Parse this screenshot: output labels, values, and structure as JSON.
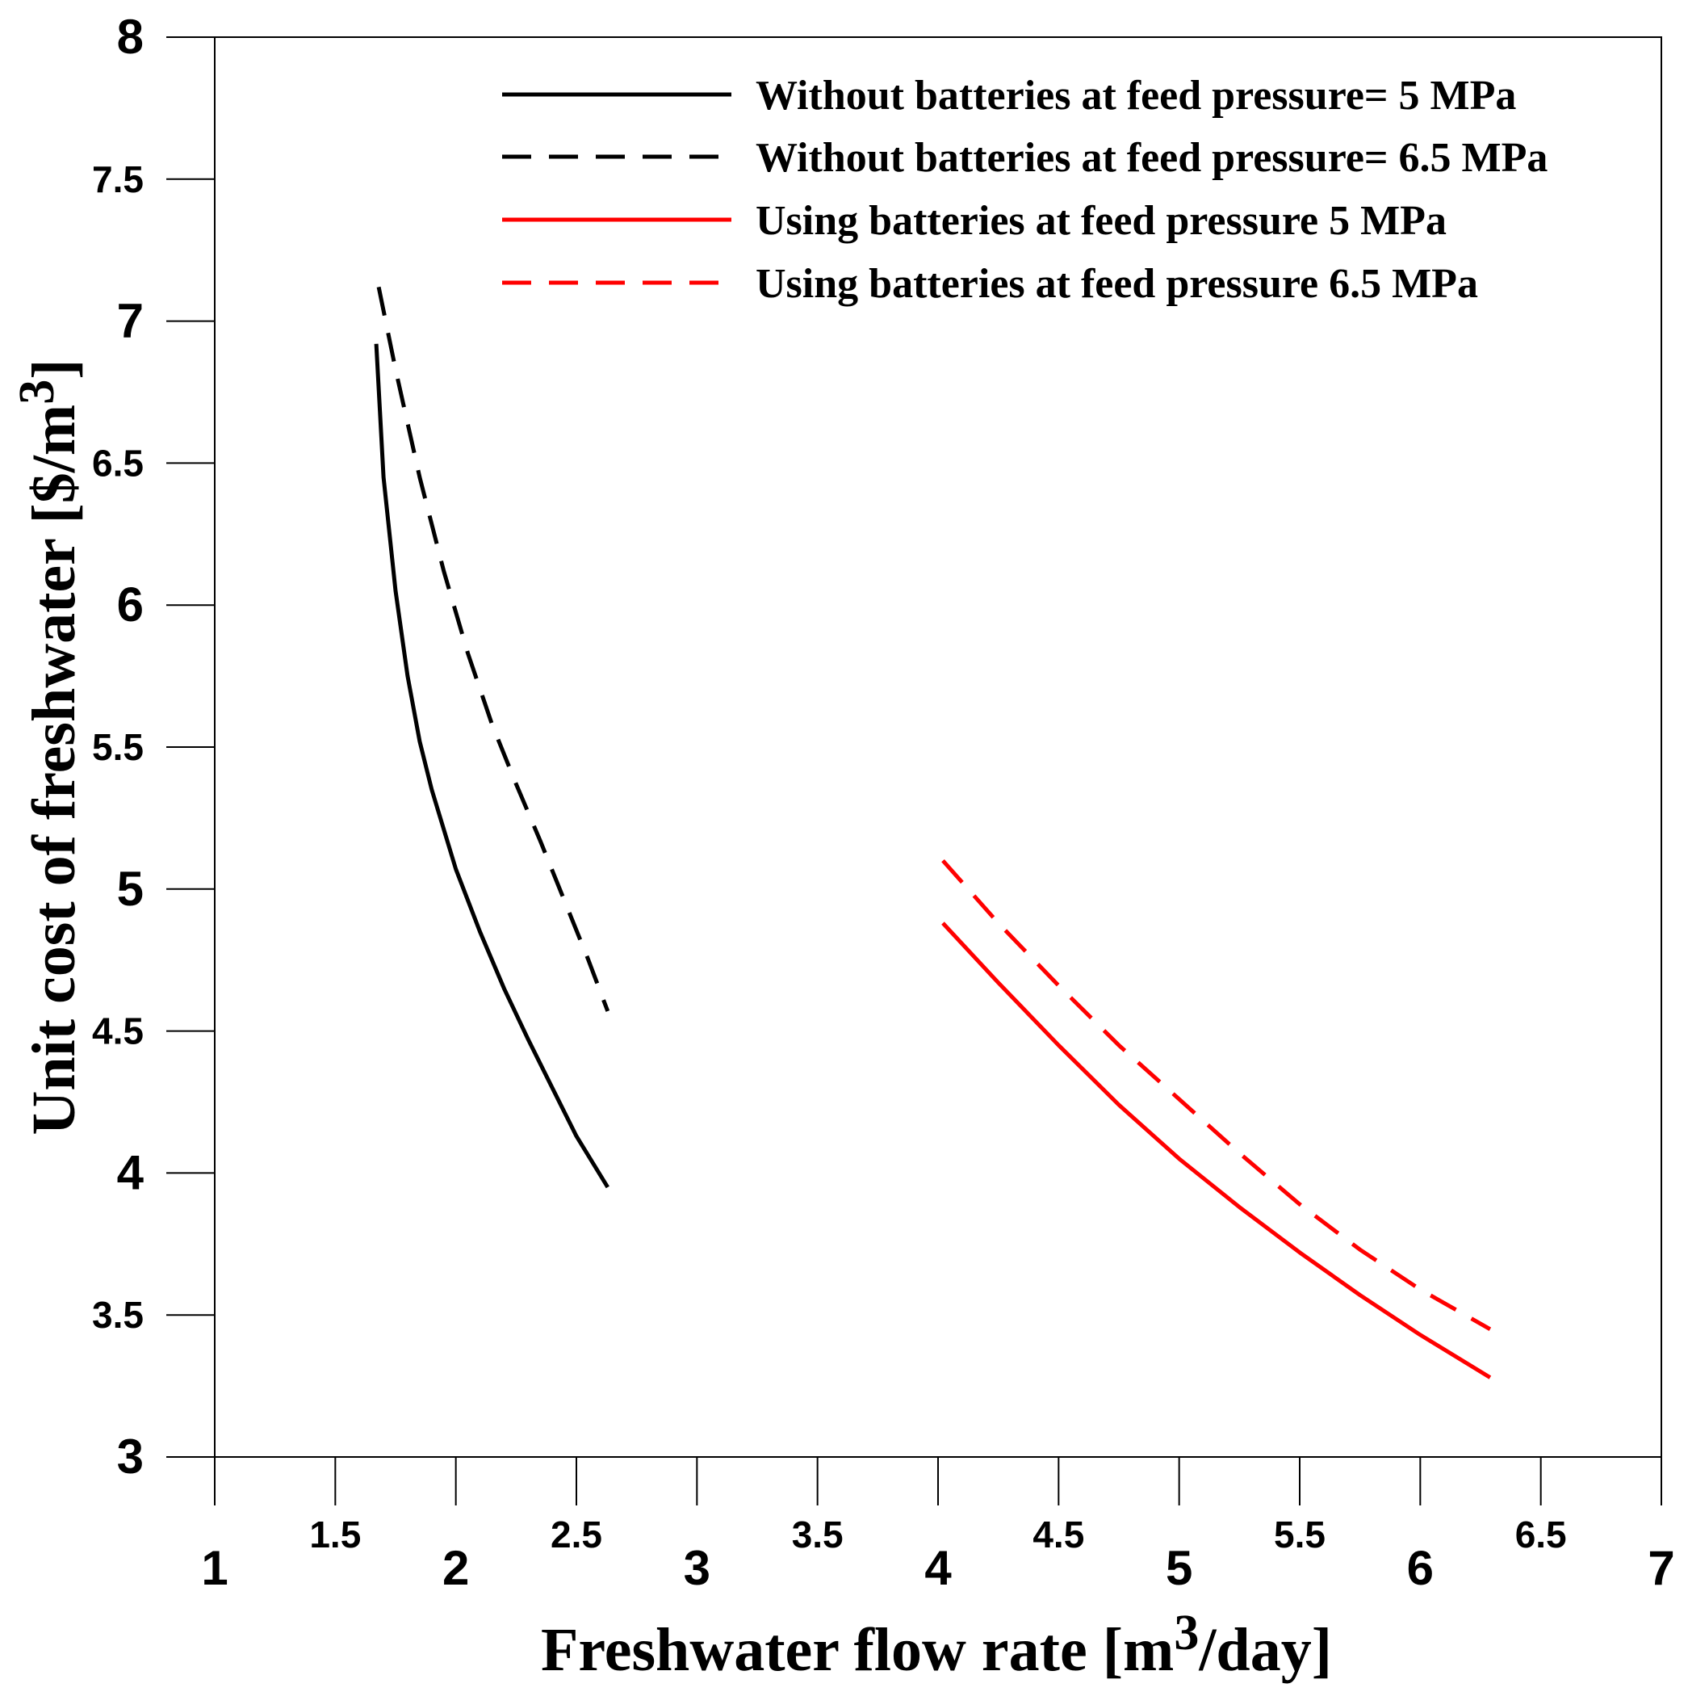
{
  "chart_data": {
    "type": "line",
    "xlabel_parts": [
      "Freshwater flow rate [m",
      "3",
      "/day]"
    ],
    "ylabel_parts": [
      "Unit cost of freshwater [$/m",
      "3",
      "]"
    ],
    "xlim": [
      1,
      7
    ],
    "ylim": [
      3,
      8
    ],
    "x_ticks": [
      "1",
      "1.5",
      "2",
      "2.5",
      "3",
      "3.5",
      "4",
      "4.5",
      "5",
      "5.5",
      "6",
      "6.5",
      "7"
    ],
    "y_ticks": [
      "3",
      "3.5",
      "4",
      "4.5",
      "5",
      "5.5",
      "6",
      "6.5",
      "7",
      "7.5",
      "8"
    ],
    "grid": false,
    "legend_position": "top-right",
    "series": [
      {
        "name": "Without batteries at feed pressure= 5 MPa",
        "color": "#000000",
        "dash": "solid",
        "x": [
          1.67,
          1.7,
          1.75,
          1.8,
          1.85,
          1.9,
          2.0,
          2.1,
          2.2,
          2.3,
          2.4,
          2.5,
          2.63
        ],
        "y": [
          6.92,
          6.45,
          6.05,
          5.75,
          5.52,
          5.35,
          5.07,
          4.85,
          4.65,
          4.47,
          4.3,
          4.13,
          3.95
        ]
      },
      {
        "name": "Without batteries at feed pressure= 6.5 MPa",
        "color": "#000000",
        "dash": "dashed",
        "x": [
          1.68,
          1.75,
          1.85,
          1.95,
          2.05,
          2.15,
          2.25,
          2.35,
          2.45,
          2.55,
          2.63
        ],
        "y": [
          7.12,
          6.83,
          6.45,
          6.12,
          5.83,
          5.58,
          5.37,
          5.17,
          4.96,
          4.75,
          4.57
        ]
      },
      {
        "name": "Using batteries at feed pressure 5 MPa",
        "color": "#ff0000",
        "dash": "solid",
        "x": [
          4.02,
          4.25,
          4.5,
          4.75,
          5.0,
          5.25,
          5.5,
          5.75,
          6.0,
          6.29
        ],
        "y": [
          4.88,
          4.67,
          4.45,
          4.24,
          4.05,
          3.88,
          3.72,
          3.57,
          3.43,
          3.28
        ]
      },
      {
        "name": "Using batteries at feed pressure 6.5 MPa",
        "color": "#ff0000",
        "dash": "dashed",
        "x": [
          4.02,
          4.25,
          4.5,
          4.75,
          5.0,
          5.25,
          5.5,
          5.75,
          6.0,
          6.29
        ],
        "y": [
          5.1,
          4.88,
          4.66,
          4.45,
          4.26,
          4.07,
          3.89,
          3.73,
          3.59,
          3.45
        ]
      }
    ]
  }
}
